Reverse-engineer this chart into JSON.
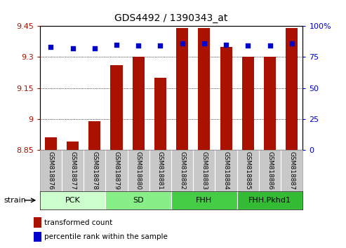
{
  "title": "GDS4492 / 1390343_at",
  "samples": [
    "GSM818876",
    "GSM818877",
    "GSM818878",
    "GSM818879",
    "GSM818880",
    "GSM818881",
    "GSM818882",
    "GSM818883",
    "GSM818884",
    "GSM818885",
    "GSM818886",
    "GSM818887"
  ],
  "bar_values": [
    8.91,
    8.89,
    8.99,
    9.26,
    9.3,
    9.2,
    9.44,
    9.44,
    9.35,
    9.3,
    9.3,
    9.44
  ],
  "percentile_values": [
    83,
    82,
    82,
    85,
    84,
    84,
    86,
    86,
    85,
    84,
    84,
    86
  ],
  "bar_color": "#aa1100",
  "percentile_color": "#0000cc",
  "ymin": 8.85,
  "ymax": 9.45,
  "yticks": [
    8.85,
    9.0,
    9.15,
    9.3,
    9.45
  ],
  "ytick_labels": [
    "8.85",
    "9",
    "9.15",
    "9.3",
    "9.45"
  ],
  "right_yticks": [
    0,
    25,
    50,
    75,
    100
  ],
  "right_ytick_labels": [
    "0",
    "25",
    "50",
    "75",
    "100%"
  ],
  "groups": [
    {
      "label": "PCK",
      "start": 0,
      "end": 2,
      "color": "#ccffcc"
    },
    {
      "label": "SD",
      "start": 3,
      "end": 5,
      "color": "#88ee88"
    },
    {
      "label": "FHH",
      "start": 6,
      "end": 8,
      "color": "#44cc44"
    },
    {
      "label": "FHH.Pkhd1",
      "start": 9,
      "end": 11,
      "color": "#33bb33"
    }
  ],
  "strain_label": "strain",
  "legend_bar_label": "transformed count",
  "legend_pct_label": "percentile rank within the sample",
  "tick_area_bg": "#c8c8c8",
  "plot_bg": "#ffffff"
}
